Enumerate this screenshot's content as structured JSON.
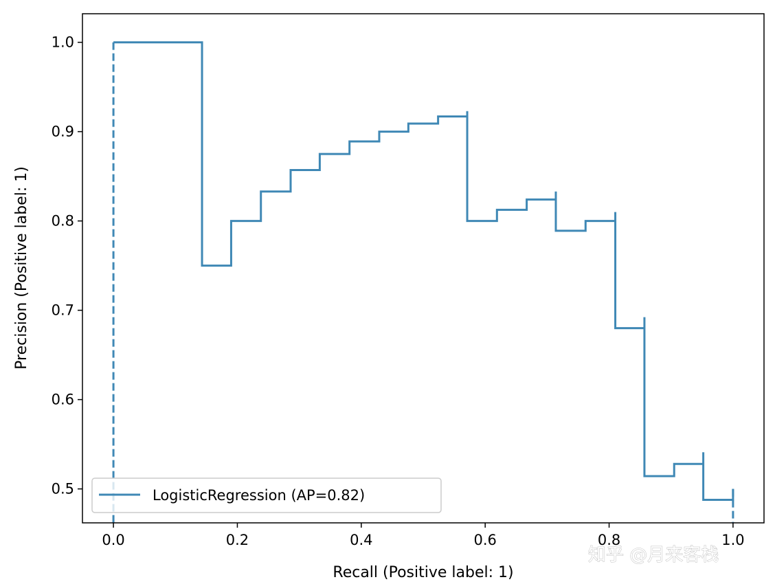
{
  "chart_data": {
    "type": "line",
    "title": "",
    "xlabel": "Recall (Positive label: 1)",
    "ylabel": "Precision (Positive label: 1)",
    "xlim": [
      -0.05,
      1.05
    ],
    "ylim": [
      0.462,
      1.032
    ],
    "xticks": [
      0.0,
      0.2,
      0.4,
      0.6,
      0.8,
      1.0
    ],
    "xtick_labels": [
      "0.0",
      "0.2",
      "0.4",
      "0.6",
      "0.8",
      "1.0"
    ],
    "yticks": [
      0.5,
      0.6,
      0.7,
      0.8,
      0.9,
      1.0
    ],
    "ytick_labels": [
      "0.5",
      "0.6",
      "0.7",
      "0.8",
      "0.9",
      "1.0"
    ],
    "grid": false,
    "legend_position": "lower-left",
    "series": [
      {
        "name": "LogisticRegression (AP=0.82)",
        "color": "#3f88b5",
        "style": "steps-post",
        "x": [
          0.0,
          0.143,
          0.143,
          0.19,
          0.238,
          0.286,
          0.333,
          0.381,
          0.429,
          0.476,
          0.524,
          0.571,
          0.571,
          0.619,
          0.667,
          0.714,
          0.714,
          0.762,
          0.81,
          0.81,
          0.857,
          0.857,
          0.905,
          0.952,
          0.952,
          1.0
        ],
        "y": [
          1.0,
          1.0,
          0.75,
          0.8,
          0.833,
          0.857,
          0.875,
          0.889,
          0.9,
          0.909,
          0.917,
          0.923,
          0.8,
          0.8125,
          0.824,
          0.833,
          0.789,
          0.8,
          0.81,
          0.68,
          0.6923,
          0.5143,
          0.528,
          0.541,
          0.4878,
          0.5
        ]
      }
    ],
    "chance_segments": [
      {
        "x": [
          0.0,
          0.0
        ],
        "y": [
          1.0,
          0.462
        ]
      },
      {
        "x": [
          1.0,
          1.0
        ],
        "y": [
          0.5,
          0.462
        ]
      }
    ]
  },
  "watermark": {
    "text": "知乎 @月来客栈"
  }
}
